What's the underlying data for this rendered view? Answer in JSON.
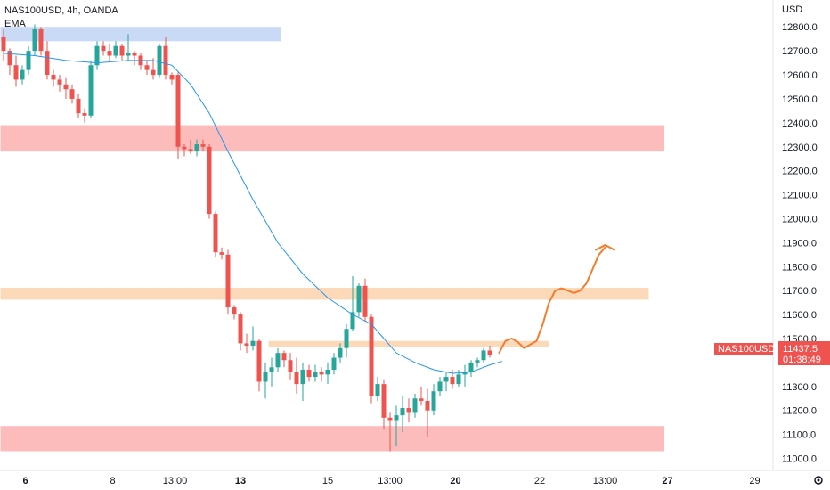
{
  "header": {
    "symbol_line": "NAS100USD, 4h, OANDA",
    "indicator": "EMA"
  },
  "colors": {
    "up": "#26a69a",
    "down": "#ef5350",
    "ema": "#2196f3",
    "red_zone": "#fdbcbc",
    "orange_zone": "#fcd9b8",
    "blue_zone": "#c8daf6",
    "projection": "#f57c2b",
    "axis_text": "#131722"
  },
  "price_tag": {
    "symbol": "NAS100USD",
    "price": "11437.5",
    "countdown": "01:38:49"
  },
  "chart_data": {
    "type": "candlestick",
    "title": "NAS100USD, 4h, OANDA",
    "y_unit": "USD",
    "ylim": [
      10950,
      12890
    ],
    "y_ticks": [
      "12800.0",
      "12700.0",
      "12600.0",
      "12500.0",
      "12400.0",
      "12300.0",
      "12200.0",
      "12100.0",
      "12000.0",
      "11900.0",
      "11800.0",
      "11700.0",
      "11600.0",
      "11500.0",
      "11300.0",
      "11200.0",
      "11100.0",
      "11000.0"
    ],
    "x_labels": [
      {
        "label": "6",
        "bar": 3.5,
        "bold": true
      },
      {
        "label": "8",
        "bar": 17.5,
        "bold": false
      },
      {
        "label": "13:00",
        "bar": 27.5,
        "bold": false
      },
      {
        "label": "13",
        "bar": 38,
        "bold": true
      },
      {
        "label": "15",
        "bar": 52,
        "bold": false
      },
      {
        "label": "13:00",
        "bar": 62,
        "bold": false
      },
      {
        "label": "20",
        "bar": 72.5,
        "bold": true
      },
      {
        "label": "22",
        "bar": 86,
        "bold": false
      },
      {
        "label": "13:00",
        "bar": 96.5,
        "bold": false
      },
      {
        "label": "27",
        "bar": 106.5,
        "bold": true
      },
      {
        "label": "29",
        "bar": 120.5,
        "bold": false
      }
    ],
    "candles": [
      [
        12760,
        12790,
        12660,
        12700
      ],
      [
        12700,
        12710,
        12600,
        12640
      ],
      [
        12640,
        12680,
        12550,
        12580
      ],
      [
        12580,
        12640,
        12560,
        12620
      ],
      [
        12620,
        12720,
        12600,
        12700
      ],
      [
        12700,
        12810,
        12680,
        12790
      ],
      [
        12790,
        12800,
        12680,
        12700
      ],
      [
        12700,
        12740,
        12580,
        12600
      ],
      [
        12600,
        12620,
        12550,
        12580
      ],
      [
        12580,
        12600,
        12530,
        12560
      ],
      [
        12560,
        12590,
        12500,
        12540
      ],
      [
        12540,
        12560,
        12480,
        12500
      ],
      [
        12500,
        12520,
        12420,
        12440
      ],
      [
        12440,
        12460,
        12400,
        12430
      ],
      [
        12430,
        12660,
        12420,
        12640
      ],
      [
        12640,
        12740,
        12620,
        12720
      ],
      [
        12720,
        12740,
        12680,
        12700
      ],
      [
        12700,
        12730,
        12660,
        12680
      ],
      [
        12680,
        12740,
        12670,
        12720
      ],
      [
        12720,
        12730,
        12660,
        12680
      ],
      [
        12680,
        12770,
        12660,
        12690
      ],
      [
        12690,
        12700,
        12640,
        12680
      ],
      [
        12680,
        12690,
        12620,
        12640
      ],
      [
        12640,
        12660,
        12600,
        12620
      ],
      [
        12620,
        12670,
        12580,
        12600
      ],
      [
        12600,
        12730,
        12590,
        12720
      ],
      [
        12720,
        12760,
        12580,
        12600
      ],
      [
        12600,
        12610,
        12560,
        12580
      ],
      [
        12600,
        12610,
        12250,
        12300
      ],
      [
        12300,
        12310,
        12260,
        12290
      ],
      [
        12290,
        12330,
        12270,
        12280
      ],
      [
        12280,
        12330,
        12260,
        12310
      ],
      [
        12310,
        12330,
        12280,
        12300
      ],
      [
        12300,
        12310,
        12000,
        12020
      ],
      [
        12020,
        12030,
        11840,
        11860
      ],
      [
        11860,
        11880,
        11830,
        11850
      ],
      [
        11850,
        11870,
        11600,
        11630
      ],
      [
        11630,
        11640,
        11580,
        11600
      ],
      [
        11600,
        11610,
        11450,
        11480
      ],
      [
        11480,
        11520,
        11440,
        11470
      ],
      [
        11470,
        11550,
        11450,
        11490
      ],
      [
        11490,
        11500,
        11280,
        11320
      ],
      [
        11320,
        11400,
        11250,
        11360
      ],
      [
        11360,
        11420,
        11300,
        11380
      ],
      [
        11380,
        11460,
        11360,
        11440
      ],
      [
        11440,
        11450,
        11380,
        11410
      ],
      [
        11410,
        11440,
        11330,
        11360
      ],
      [
        11360,
        11420,
        11270,
        11310
      ],
      [
        11310,
        11400,
        11240,
        11370
      ],
      [
        11370,
        11390,
        11320,
        11340
      ],
      [
        11340,
        11390,
        11320,
        11360
      ],
      [
        11360,
        11380,
        11320,
        11350
      ],
      [
        11350,
        11400,
        11310,
        11370
      ],
      [
        11370,
        11440,
        11350,
        11420
      ],
      [
        11420,
        11480,
        11400,
        11460
      ],
      [
        11460,
        11560,
        11420,
        11540
      ],
      [
        11540,
        11760,
        11530,
        11610
      ],
      [
        11610,
        11730,
        11590,
        11720
      ],
      [
        11720,
        11750,
        11570,
        11590
      ],
      [
        11590,
        11600,
        11230,
        11260
      ],
      [
        11260,
        11340,
        11240,
        11310
      ],
      [
        11310,
        11330,
        11120,
        11170
      ],
      [
        11170,
        11190,
        11030,
        11160
      ],
      [
        11160,
        11220,
        11050,
        11180
      ],
      [
        11180,
        11260,
        11110,
        11210
      ],
      [
        11210,
        11250,
        11150,
        11190
      ],
      [
        11190,
        11270,
        11170,
        11250
      ],
      [
        11250,
        11300,
        11220,
        11240
      ],
      [
        11240,
        11290,
        11090,
        11200
      ],
      [
        11200,
        11310,
        11180,
        11280
      ],
      [
        11280,
        11340,
        11260,
        11320
      ],
      [
        11320,
        11360,
        11280,
        11340
      ],
      [
        11340,
        11370,
        11290,
        11310
      ],
      [
        11310,
        11370,
        11300,
        11350
      ],
      [
        11350,
        11390,
        11300,
        11360
      ],
      [
        11360,
        11410,
        11340,
        11400
      ],
      [
        11400,
        11420,
        11380,
        11410
      ],
      [
        11410,
        11460,
        11400,
        11450
      ],
      [
        11450,
        11470,
        11420,
        11430
      ]
    ],
    "ema": [
      [
        0,
        12690
      ],
      [
        5,
        12680
      ],
      [
        10,
        12660
      ],
      [
        15,
        12650
      ],
      [
        20,
        12660
      ],
      [
        24,
        12660
      ],
      [
        27,
        12640
      ],
      [
        30,
        12560
      ],
      [
        33,
        12440
      ],
      [
        36,
        12280
      ],
      [
        40,
        12080
      ],
      [
        44,
        11900
      ],
      [
        48,
        11770
      ],
      [
        52,
        11670
      ],
      [
        56,
        11600
      ],
      [
        59,
        11560
      ],
      [
        61,
        11500
      ],
      [
        63,
        11440
      ],
      [
        66,
        11400
      ],
      [
        69,
        11370
      ],
      [
        72,
        11355
      ],
      [
        75,
        11360
      ],
      [
        78,
        11390
      ],
      [
        80,
        11405
      ]
    ],
    "zones": [
      {
        "kind": "blue",
        "y0": 12740,
        "y1": 12800,
        "bar0": -0.5,
        "bar1": 44.5
      },
      {
        "kind": "red",
        "y0": 12280,
        "y1": 12390,
        "bar0": -0.5,
        "bar1": 106
      },
      {
        "kind": "orange",
        "y0": 11662,
        "y1": 11712,
        "bar0": -0.5,
        "bar1": 103.5
      },
      {
        "kind": "orange",
        "y0": 11465,
        "y1": 11490,
        "bar0": 42.5,
        "bar1": 87.5
      },
      {
        "kind": "red",
        "y0": 11030,
        "y1": 11135,
        "bar0": -0.5,
        "bar1": 106
      }
    ],
    "projection": [
      [
        79.5,
        11440
      ],
      [
        80.5,
        11490
      ],
      [
        81.5,
        11500
      ],
      [
        82.5,
        11485
      ],
      [
        83.5,
        11460
      ],
      [
        84.5,
        11475
      ],
      [
        85.5,
        11490
      ],
      [
        86.5,
        11560
      ],
      [
        87.5,
        11650
      ],
      [
        88.5,
        11700
      ],
      [
        89.5,
        11710
      ],
      [
        90.5,
        11700
      ],
      [
        91.5,
        11690
      ],
      [
        92.5,
        11700
      ],
      [
        93.5,
        11730
      ],
      [
        94.5,
        11790
      ],
      [
        95.5,
        11850
      ],
      [
        96.5,
        11880
      ]
    ],
    "projection_arrow": {
      "tip": [
        96.5,
        11890
      ],
      "left": [
        95.0,
        11870
      ],
      "right": [
        98.0,
        11870
      ]
    },
    "last_price": 11437.5
  }
}
